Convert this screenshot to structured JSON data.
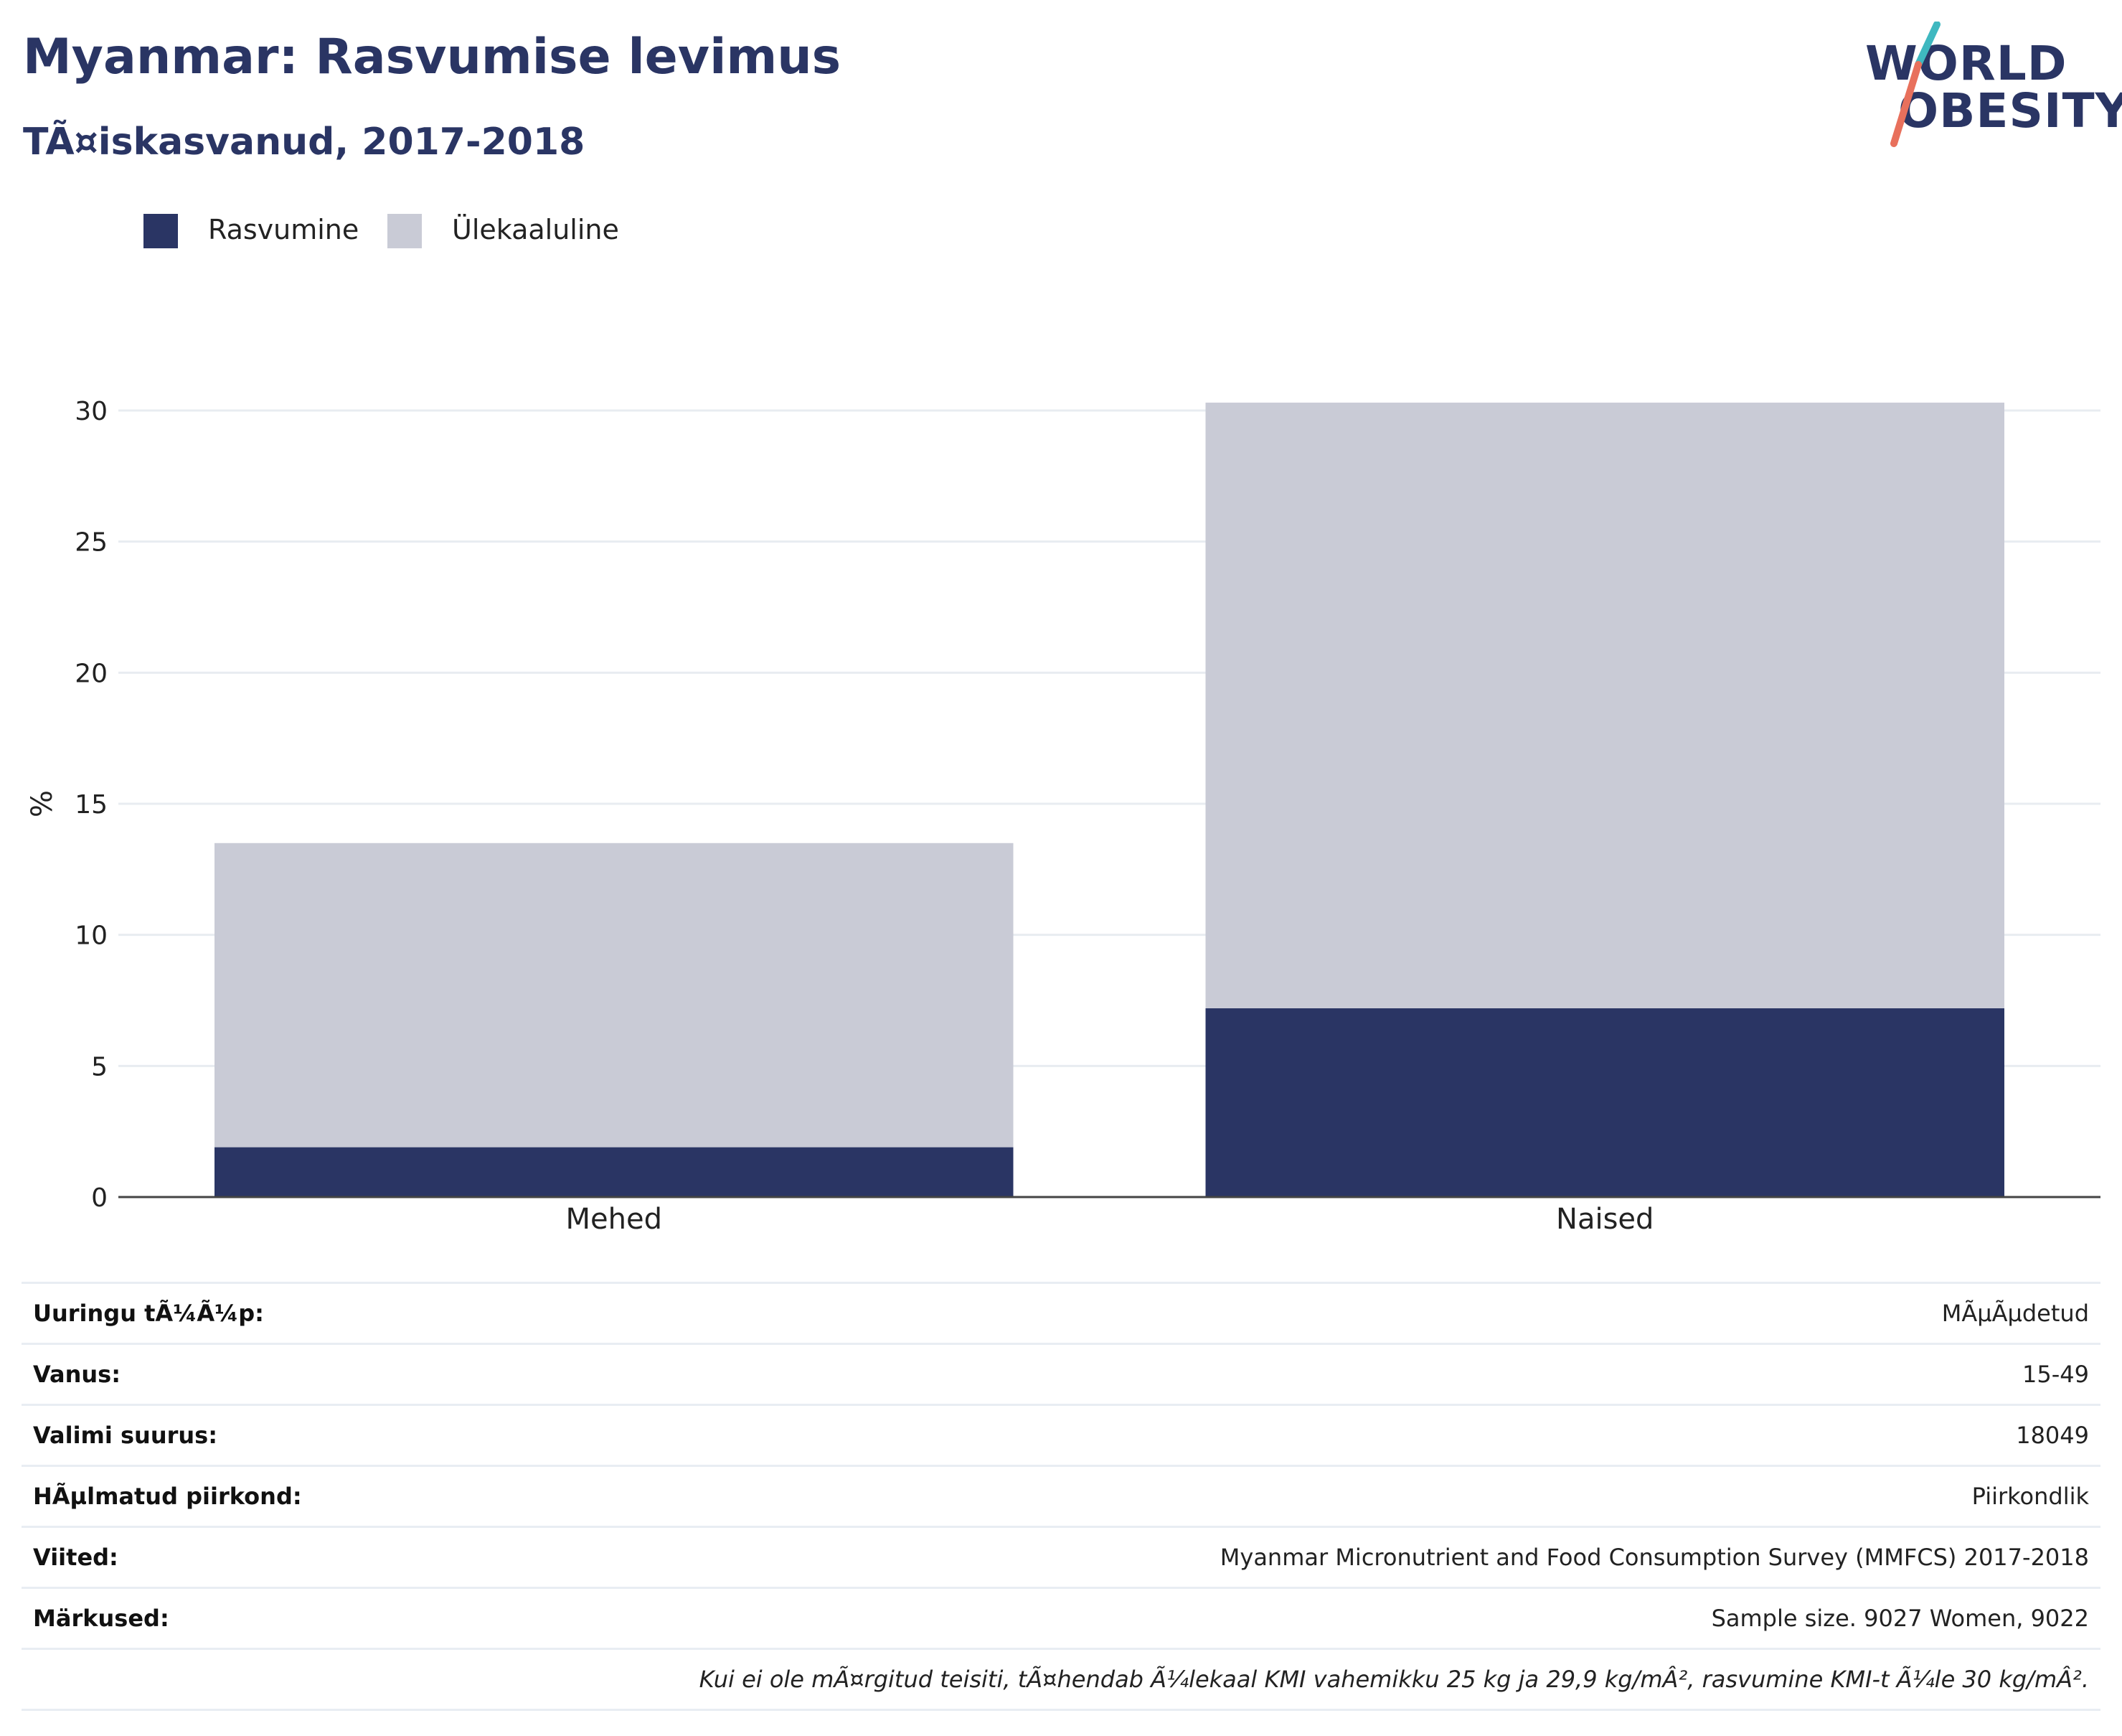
{
  "header": {
    "title": "Myanmar: Rasvumise levimus",
    "subtitle": "TÃ¤iskasvanud, 2017-2018"
  },
  "logo": {
    "line1": "WORLD",
    "line2": "OBESITY",
    "colors": {
      "text": "#2a3564",
      "slash_top": "#3fb8c0",
      "slash_bottom": "#e8705c"
    }
  },
  "legend": {
    "items": [
      {
        "label": "Rasvumine",
        "color": "#2a3564"
      },
      {
        "label": "Ülekaaluline",
        "color": "#c9cbd6"
      }
    ]
  },
  "chart_data": {
    "type": "bar",
    "stacked": true,
    "categories": [
      "Mehed",
      "Naised"
    ],
    "series": [
      {
        "name": "Rasvumine",
        "values": [
          1.9,
          7.2
        ],
        "color": "#2a3564"
      },
      {
        "name": "Ülekaaluline",
        "values": [
          11.6,
          23.1
        ],
        "color": "#c9cbd6"
      }
    ],
    "ylabel": "%",
    "ylim": [
      0,
      30
    ],
    "yticks": [
      0,
      5,
      10,
      15,
      20,
      25,
      30
    ],
    "grid": true,
    "legend_position": "top-left"
  },
  "info": {
    "rows": [
      {
        "key": "Uuringu tÃ¼Ã¼p:",
        "value": "MÃµÃµdetud"
      },
      {
        "key": "Vanus:",
        "value": "15-49"
      },
      {
        "key": "Valimi suurus:",
        "value": "18049"
      },
      {
        "key": "HÃµlmatud piirkond:",
        "value": "Piirkondlik"
      },
      {
        "key": "Viited:",
        "value": "Myanmar Micronutrient and Food Consumption Survey (MMFCS) 2017-2018"
      },
      {
        "key": "Märkused:",
        "value": "Sample size. 9027 Women, 9022"
      },
      {
        "key": "",
        "value": "Kui ei ole mÃ¤rgitud teisiti, tÃ¤hendab Ã¼lekaal KMI vahemikku 25 kg ja 29,9 kg/mÂ², rasvumine KMI-t Ã¼le 30 kg/mÂ²."
      }
    ]
  }
}
